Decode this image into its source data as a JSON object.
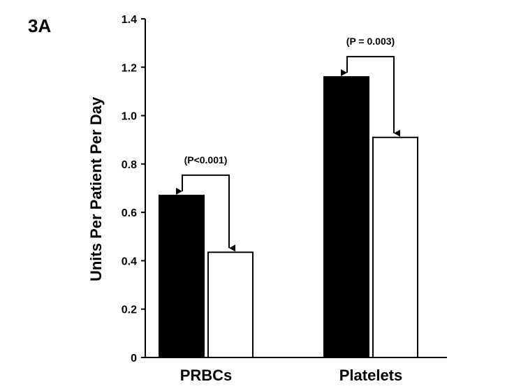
{
  "panel_label": "3A",
  "chart_data": {
    "type": "bar",
    "title": "",
    "xlabel": "",
    "ylabel": "Units Per Patient Per Day",
    "ylim": [
      0,
      1.4
    ],
    "yticks": [
      "0",
      "0.2",
      "0.4",
      "0.6",
      "0.8",
      "1.0",
      "1.2",
      "1.4"
    ],
    "ytick_values": [
      0,
      0.2,
      0.4,
      0.6,
      0.8,
      1.0,
      1.2,
      1.4
    ],
    "categories": [
      "PRBCs",
      "Platelets"
    ],
    "series": [
      {
        "values": [
          0.67,
          1.16
        ],
        "color": "#000000"
      },
      {
        "values": [
          0.435,
          0.91
        ],
        "color": "#ffffff"
      }
    ],
    "annotations": [
      "(P<0.001)",
      "(P = 0.003)"
    ],
    "grid": false
  }
}
